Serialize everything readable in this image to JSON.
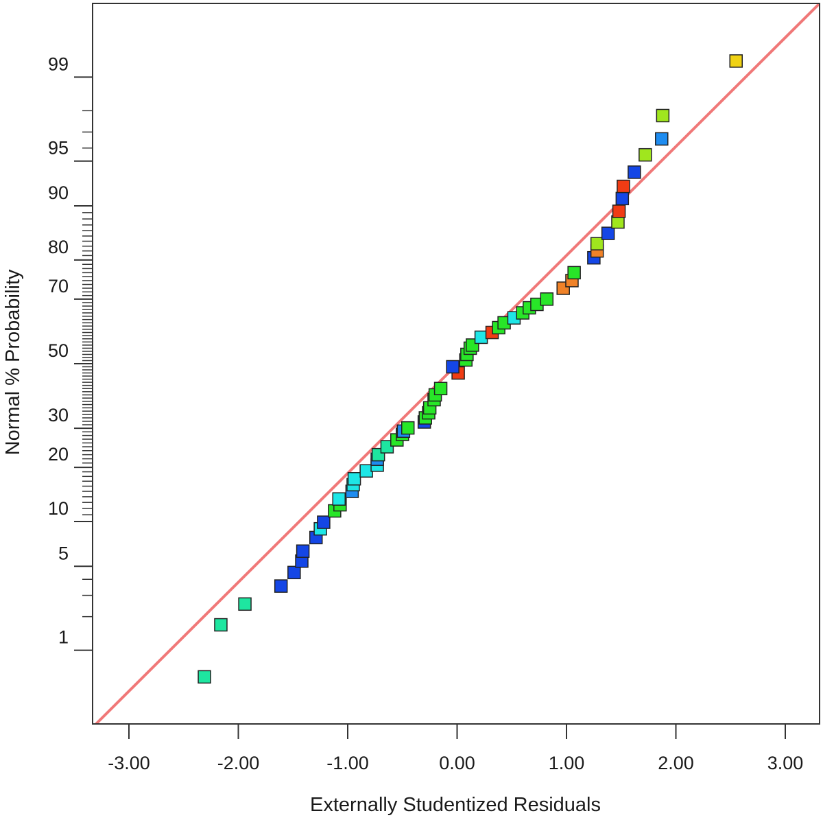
{
  "chart_data": {
    "type": "scatter",
    "title": "",
    "xlabel": "Externally Studentized Residuals",
    "ylabel": "Normal % Probability",
    "xlim": [
      -3.3,
      3.3
    ],
    "x_ticks": [
      {
        "value": -3,
        "label": "-3.00"
      },
      {
        "value": -2,
        "label": "-2.00"
      },
      {
        "value": -1,
        "label": "-1.00"
      },
      {
        "value": 0,
        "label": "0.00"
      },
      {
        "value": 1,
        "label": "1.00"
      },
      {
        "value": 2,
        "label": "2.00"
      },
      {
        "value": 3,
        "label": "3.00"
      }
    ],
    "y_scale": "normal-probability",
    "ylim": [
      0.1,
      99.9
    ],
    "y_major_ticks": [
      {
        "value": 1,
        "label": "1"
      },
      {
        "value": 5,
        "label": "5"
      },
      {
        "value": 10,
        "label": "10"
      },
      {
        "value": 20,
        "label": "20"
      },
      {
        "value": 30,
        "label": "30"
      },
      {
        "value": 50,
        "label": "50"
      },
      {
        "value": 70,
        "label": "70"
      },
      {
        "value": 80,
        "label": "80"
      },
      {
        "value": 90,
        "label": "90"
      },
      {
        "value": 95,
        "label": "95"
      },
      {
        "value": 99,
        "label": "99"
      }
    ],
    "y_minor_ticks": [
      2,
      3,
      4,
      11,
      12,
      13,
      14,
      15,
      16,
      17,
      18,
      19,
      21,
      22,
      23,
      24,
      25,
      26,
      27,
      28,
      29,
      31,
      32,
      33,
      34,
      35,
      36,
      37,
      38,
      39,
      40,
      41,
      42,
      43,
      44,
      45,
      46,
      47,
      48,
      49,
      51,
      52,
      53,
      54,
      55,
      56,
      57,
      58,
      59,
      60,
      61,
      62,
      63,
      64,
      65,
      66,
      67,
      68,
      69,
      71,
      72,
      73,
      74,
      75,
      76,
      77,
      78,
      79,
      81,
      82,
      83,
      84,
      85,
      86,
      87,
      88,
      89,
      96,
      97,
      98
    ],
    "grid": false,
    "reference_line": {
      "color": "#f07878"
    },
    "point_colors": {
      "blue": "#1446e6",
      "azure": "#1e8cf0",
      "cyan": "#1ee6e6",
      "teal": "#1ee6a0",
      "green": "#28e628",
      "lime": "#a0e61e",
      "yellow": "#f0d214",
      "orange": "#f08228",
      "red": "#f03c14"
    },
    "points": [
      {
        "x": -2.31,
        "y": 0.55,
        "color": "teal"
      },
      {
        "x": -2.16,
        "y": 1.7,
        "color": "teal"
      },
      {
        "x": -1.94,
        "y": 2.55,
        "color": "teal"
      },
      {
        "x": -1.61,
        "y": 3.55,
        "color": "blue"
      },
      {
        "x": -1.49,
        "y": 4.5,
        "color": "blue"
      },
      {
        "x": -1.42,
        "y": 5.45,
        "color": "blue"
      },
      {
        "x": -1.41,
        "y": 6.4,
        "color": "blue"
      },
      {
        "x": -1.29,
        "y": 7.9,
        "color": "blue"
      },
      {
        "x": -1.25,
        "y": 9.0,
        "color": "cyan"
      },
      {
        "x": -1.22,
        "y": 9.9,
        "color": "blue"
      },
      {
        "x": -1.12,
        "y": 11.6,
        "color": "green"
      },
      {
        "x": -1.07,
        "y": 12.6,
        "color": "green"
      },
      {
        "x": -1.08,
        "y": 13.6,
        "color": "cyan"
      },
      {
        "x": -0.96,
        "y": 15.0,
        "color": "azure"
      },
      {
        "x": -0.95,
        "y": 16.3,
        "color": "cyan"
      },
      {
        "x": -0.94,
        "y": 17.5,
        "color": "cyan"
      },
      {
        "x": -0.83,
        "y": 19.2,
        "color": "cyan"
      },
      {
        "x": -0.73,
        "y": 20.5,
        "color": "cyan"
      },
      {
        "x": -0.73,
        "y": 21.9,
        "color": "azure"
      },
      {
        "x": -0.72,
        "y": 23.0,
        "color": "teal"
      },
      {
        "x": -0.64,
        "y": 25.0,
        "color": "teal"
      },
      {
        "x": -0.55,
        "y": 26.8,
        "color": "green"
      },
      {
        "x": -0.5,
        "y": 28.3,
        "color": "green"
      },
      {
        "x": -0.49,
        "y": 29.2,
        "color": "azure"
      },
      {
        "x": -0.45,
        "y": 30.1,
        "color": "green"
      },
      {
        "x": -0.3,
        "y": 31.8,
        "color": "blue"
      },
      {
        "x": -0.29,
        "y": 33.0,
        "color": "green"
      },
      {
        "x": -0.26,
        "y": 34.5,
        "color": "green"
      },
      {
        "x": -0.25,
        "y": 36.0,
        "color": "green"
      },
      {
        "x": -0.21,
        "y": 38.5,
        "color": "green"
      },
      {
        "x": -0.2,
        "y": 40.0,
        "color": "green"
      },
      {
        "x": -0.15,
        "y": 42.0,
        "color": "green"
      },
      {
        "x": 0.01,
        "y": 47.0,
        "color": "red"
      },
      {
        "x": -0.04,
        "y": 49.0,
        "color": "blue"
      },
      {
        "x": 0.08,
        "y": 51.2,
        "color": "green"
      },
      {
        "x": 0.09,
        "y": 53.0,
        "color": "green"
      },
      {
        "x": 0.12,
        "y": 55.0,
        "color": "green"
      },
      {
        "x": 0.14,
        "y": 56.0,
        "color": "green"
      },
      {
        "x": 0.22,
        "y": 58.5,
        "color": "cyan"
      },
      {
        "x": 0.32,
        "y": 60.0,
        "color": "red"
      },
      {
        "x": 0.38,
        "y": 61.5,
        "color": "green"
      },
      {
        "x": 0.43,
        "y": 63.0,
        "color": "green"
      },
      {
        "x": 0.52,
        "y": 64.5,
        "color": "cyan"
      },
      {
        "x": 0.6,
        "y": 66.0,
        "color": "green"
      },
      {
        "x": 0.66,
        "y": 67.5,
        "color": "green"
      },
      {
        "x": 0.73,
        "y": 68.5,
        "color": "green"
      },
      {
        "x": 0.82,
        "y": 70.0,
        "color": "green"
      },
      {
        "x": 0.97,
        "y": 73.0,
        "color": "orange"
      },
      {
        "x": 1.05,
        "y": 75.0,
        "color": "orange"
      },
      {
        "x": 1.07,
        "y": 77.0,
        "color": "green"
      },
      {
        "x": 1.25,
        "y": 80.5,
        "color": "blue"
      },
      {
        "x": 1.28,
        "y": 82.0,
        "color": "orange"
      },
      {
        "x": 1.28,
        "y": 83.5,
        "color": "lime"
      },
      {
        "x": 1.38,
        "y": 85.5,
        "color": "blue"
      },
      {
        "x": 1.47,
        "y": 87.5,
        "color": "lime"
      },
      {
        "x": 1.48,
        "y": 89.2,
        "color": "red"
      },
      {
        "x": 1.51,
        "y": 91.0,
        "color": "blue"
      },
      {
        "x": 1.52,
        "y": 92.5,
        "color": "red"
      },
      {
        "x": 1.62,
        "y": 94.0,
        "color": "blue"
      },
      {
        "x": 1.72,
        "y": 95.5,
        "color": "lime"
      },
      {
        "x": 1.87,
        "y": 96.6,
        "color": "azure"
      },
      {
        "x": 1.88,
        "y": 97.8,
        "color": "lime"
      },
      {
        "x": 2.55,
        "y": 99.3,
        "color": "yellow"
      }
    ]
  }
}
